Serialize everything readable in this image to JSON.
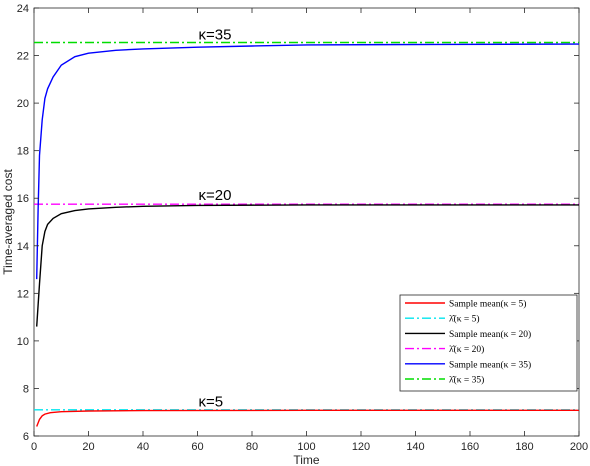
{
  "chart_data": {
    "type": "line",
    "xlabel": "Time",
    "ylabel": "Time-averaged cost",
    "xlim": [
      0,
      200
    ],
    "ylim": [
      6,
      24
    ],
    "xticks": [
      "0",
      "20",
      "40",
      "60",
      "80",
      "100",
      "120",
      "140",
      "160",
      "180",
      "200"
    ],
    "yticks": [
      "6",
      "8",
      "10",
      "12",
      "14",
      "16",
      "18",
      "20",
      "22",
      "24"
    ],
    "grid": false,
    "legend_position": "bottom-right",
    "annotations": [
      {
        "text": "κ=35",
        "x": 60,
        "y": 22.6
      },
      {
        "text": "κ=20",
        "x": 60,
        "y": 15.85
      },
      {
        "text": "κ=5",
        "x": 60,
        "y": 7.2
      }
    ],
    "series": [
      {
        "name": "Sample mean(κ = 5)",
        "color": "#ff0000",
        "style": "solid",
        "points": [
          [
            1,
            6.4
          ],
          [
            2,
            6.7
          ],
          [
            3,
            6.85
          ],
          [
            4,
            6.92
          ],
          [
            6,
            6.98
          ],
          [
            10,
            7.02
          ],
          [
            20,
            7.05
          ],
          [
            40,
            7.07
          ],
          [
            100,
            7.08
          ],
          [
            200,
            7.08
          ]
        ]
      },
      {
        "name": "λ̂(κ = 5)",
        "color": "#00e5ee",
        "style": "dashdot",
        "points": [
          [
            0,
            7.1
          ],
          [
            200,
            7.1
          ]
        ]
      },
      {
        "name": "Sample mean(κ = 20)",
        "color": "#000000",
        "style": "solid",
        "points": [
          [
            1,
            10.6
          ],
          [
            2,
            12.4
          ],
          [
            3,
            14.0
          ],
          [
            4,
            14.6
          ],
          [
            5,
            14.9
          ],
          [
            7,
            15.15
          ],
          [
            10,
            15.35
          ],
          [
            15,
            15.48
          ],
          [
            20,
            15.55
          ],
          [
            30,
            15.62
          ],
          [
            40,
            15.66
          ],
          [
            60,
            15.7
          ],
          [
            100,
            15.72
          ],
          [
            200,
            15.72
          ]
        ]
      },
      {
        "name": "λ̂(κ = 20)",
        "color": "#ff00ff",
        "style": "dashdot",
        "points": [
          [
            0,
            15.75
          ],
          [
            200,
            15.75
          ]
        ]
      },
      {
        "name": "Sample mean(κ = 35)",
        "color": "#0000ff",
        "style": "solid",
        "points": [
          [
            1,
            12.6
          ],
          [
            1.5,
            15.5
          ],
          [
            2,
            17.8
          ],
          [
            3,
            19.3
          ],
          [
            4,
            20.2
          ],
          [
            5,
            20.6
          ],
          [
            7,
            21.1
          ],
          [
            10,
            21.6
          ],
          [
            15,
            21.95
          ],
          [
            20,
            22.1
          ],
          [
            30,
            22.22
          ],
          [
            40,
            22.28
          ],
          [
            60,
            22.35
          ],
          [
            80,
            22.4
          ],
          [
            100,
            22.45
          ],
          [
            150,
            22.47
          ],
          [
            200,
            22.48
          ]
        ]
      },
      {
        "name": "λ̂(κ = 35)",
        "color": "#00dd00",
        "style": "dashdot",
        "points": [
          [
            0,
            22.55
          ],
          [
            200,
            22.55
          ]
        ]
      }
    ]
  }
}
